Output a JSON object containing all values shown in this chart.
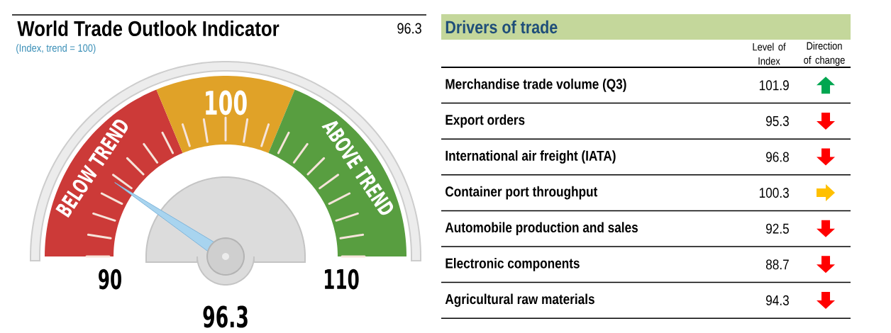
{
  "chart_data": [
    {
      "type": "donut",
      "title": "World Trade Outlook Indicator",
      "subtitle": "(Index, trend = 100)",
      "categories": [
        "BELOW TREND",
        null,
        "ABOVE TREND"
      ],
      "values": [
        37.5,
        25,
        37.5
      ],
      "colors": [
        "#cc3a38",
        "#e0a228",
        "#589e40"
      ],
      "needle": "BELOW TREND",
      "annotations": [
        "96.3",
        "90",
        "100",
        "110",
        "96.3"
      ]
    },
    {
      "type": "other",
      "title": "Drivers of trade",
      "categories": [
        "Merchandise trade volume (Q3)",
        "Export orders",
        "International air freight (IATA)",
        "Container port throughput",
        "Automobile production and sales",
        "Electronic components",
        "Agricultural raw materials"
      ],
      "values": [
        101.9,
        95.3,
        96.8,
        100.3,
        92.5,
        88.7,
        94.3
      ],
      "data_labels": true,
      "colors": [
        "#00a650",
        "#ff0000",
        "#ff0000",
        "#ffc000",
        "#ff0000",
        "#ff0000",
        "#ff0000"
      ],
      "annotations": [
        "Level of Index",
        "Direction of change"
      ]
    }
  ]
}
